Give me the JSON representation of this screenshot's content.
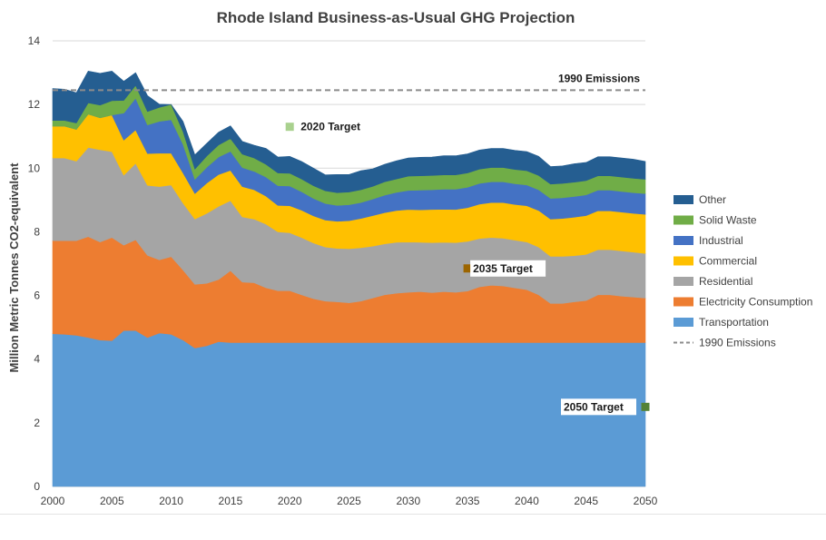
{
  "chart_data": {
    "type": "area",
    "stacked": true,
    "title": "Rhode Island Business-as-Usual GHG Projection",
    "xlabel": "",
    "ylabel": "Million Metric Tonnes CO2-equivalent",
    "xlim": [
      2000,
      2050
    ],
    "ylim": [
      0,
      14
    ],
    "x_ticks": [
      2000,
      2005,
      2010,
      2015,
      2020,
      2025,
      2030,
      2035,
      2040,
      2045,
      2050
    ],
    "y_ticks": [
      0,
      2,
      4,
      6,
      8,
      10,
      12,
      14
    ],
    "grid": "horizontal",
    "legend_position": "right",
    "x": [
      2000,
      2001,
      2002,
      2003,
      2004,
      2005,
      2006,
      2007,
      2008,
      2009,
      2010,
      2011,
      2012,
      2013,
      2014,
      2015,
      2016,
      2017,
      2018,
      2019,
      2020,
      2021,
      2022,
      2023,
      2024,
      2025,
      2026,
      2027,
      2028,
      2029,
      2030,
      2031,
      2032,
      2033,
      2034,
      2035,
      2036,
      2037,
      2038,
      2039,
      2040,
      2041,
      2042,
      2043,
      2044,
      2045,
      2046,
      2047,
      2048,
      2049,
      2050
    ],
    "series": [
      {
        "name": "Transportation",
        "color": "#5B9BD5",
        "values": [
          4.8,
          4.78,
          4.75,
          4.68,
          4.6,
          4.58,
          4.9,
          4.9,
          4.68,
          4.82,
          4.78,
          4.6,
          4.35,
          4.42,
          4.55,
          4.52,
          4.52,
          4.52,
          4.52,
          4.52,
          4.52,
          4.52,
          4.52,
          4.52,
          4.52,
          4.52,
          4.52,
          4.52,
          4.52,
          4.52,
          4.52,
          4.52,
          4.52,
          4.52,
          4.52,
          4.52,
          4.52,
          4.52,
          4.52,
          4.52,
          4.52,
          4.52,
          4.52,
          4.52,
          4.52,
          4.52,
          4.52,
          4.52,
          4.52,
          4.52,
          4.52
        ]
      },
      {
        "name": "Electricity Consumption",
        "color": "#ED7D31",
        "values": [
          2.92,
          2.94,
          2.97,
          3.17,
          3.08,
          3.24,
          2.68,
          2.85,
          2.58,
          2.3,
          2.44,
          2.2,
          2.0,
          1.96,
          1.95,
          2.26,
          1.9,
          1.88,
          1.72,
          1.63,
          1.63,
          1.5,
          1.38,
          1.3,
          1.28,
          1.25,
          1.3,
          1.4,
          1.5,
          1.55,
          1.58,
          1.6,
          1.57,
          1.6,
          1.58,
          1.62,
          1.75,
          1.8,
          1.78,
          1.72,
          1.66,
          1.5,
          1.23,
          1.23,
          1.28,
          1.32,
          1.5,
          1.5,
          1.46,
          1.43,
          1.4
        ]
      },
      {
        "name": "Residential",
        "color": "#A5A5A5",
        "values": [
          2.6,
          2.6,
          2.5,
          2.8,
          2.9,
          2.7,
          2.2,
          2.4,
          2.2,
          2.3,
          2.25,
          2.1,
          2.05,
          2.2,
          2.3,
          2.2,
          2.05,
          2.0,
          2.0,
          1.85,
          1.82,
          1.8,
          1.75,
          1.7,
          1.68,
          1.7,
          1.68,
          1.63,
          1.6,
          1.6,
          1.58,
          1.55,
          1.57,
          1.55,
          1.56,
          1.56,
          1.52,
          1.5,
          1.5,
          1.5,
          1.5,
          1.5,
          1.48,
          1.48,
          1.45,
          1.45,
          1.42,
          1.42,
          1.42,
          1.41,
          1.4
        ]
      },
      {
        "name": "Commercial",
        "color": "#FFC000",
        "values": [
          1.0,
          1.0,
          1.0,
          1.05,
          1.0,
          1.15,
          1.1,
          1.05,
          1.0,
          1.05,
          1.0,
          0.95,
          0.8,
          0.95,
          1.0,
          0.95,
          0.95,
          0.92,
          0.88,
          0.83,
          0.85,
          0.86,
          0.85,
          0.85,
          0.85,
          0.88,
          0.92,
          0.96,
          0.98,
          1.0,
          1.02,
          1.02,
          1.04,
          1.04,
          1.04,
          1.06,
          1.08,
          1.1,
          1.12,
          1.12,
          1.14,
          1.15,
          1.17,
          1.19,
          1.21,
          1.22,
          1.22,
          1.22,
          1.22,
          1.22,
          1.23
        ]
      },
      {
        "name": "Industrial",
        "color": "#4472C4",
        "values": [
          0.0,
          0.0,
          0.0,
          0.0,
          0.0,
          0.0,
          0.85,
          1.0,
          0.9,
          1.0,
          1.05,
          0.9,
          0.45,
          0.5,
          0.55,
          0.6,
          0.6,
          0.58,
          0.6,
          0.62,
          0.62,
          0.58,
          0.55,
          0.52,
          0.5,
          0.5,
          0.5,
          0.52,
          0.55,
          0.57,
          0.6,
          0.62,
          0.62,
          0.63,
          0.64,
          0.64,
          0.65,
          0.65,
          0.65,
          0.65,
          0.65,
          0.65,
          0.65,
          0.65,
          0.65,
          0.65,
          0.65,
          0.65,
          0.65,
          0.65,
          0.65
        ]
      },
      {
        "name": "Solid Waste",
        "color": "#70AD47",
        "values": [
          0.18,
          0.18,
          0.2,
          0.35,
          0.4,
          0.45,
          0.4,
          0.4,
          0.42,
          0.44,
          0.48,
          0.4,
          0.32,
          0.35,
          0.38,
          0.4,
          0.42,
          0.42,
          0.4,
          0.4,
          0.4,
          0.4,
          0.4,
          0.4,
          0.4,
          0.4,
          0.4,
          0.4,
          0.42,
          0.42,
          0.45,
          0.45,
          0.45,
          0.45,
          0.45,
          0.45,
          0.45,
          0.45,
          0.45,
          0.45,
          0.45,
          0.45,
          0.45,
          0.45,
          0.45,
          0.45,
          0.45,
          0.45,
          0.45,
          0.45,
          0.45
        ]
      },
      {
        "name": "Other",
        "color": "#255E91",
        "values": [
          1.0,
          0.98,
          0.95,
          1.0,
          1.0,
          0.93,
          0.6,
          0.4,
          0.5,
          0.1,
          0.0,
          0.32,
          0.45,
          0.4,
          0.4,
          0.4,
          0.4,
          0.4,
          0.5,
          0.5,
          0.53,
          0.55,
          0.55,
          0.5,
          0.57,
          0.55,
          0.6,
          0.55,
          0.55,
          0.57,
          0.57,
          0.58,
          0.58,
          0.6,
          0.6,
          0.6,
          0.6,
          0.6,
          0.6,
          0.6,
          0.6,
          0.6,
          0.55,
          0.55,
          0.58,
          0.57,
          0.6,
          0.6,
          0.6,
          0.6,
          0.56
        ]
      }
    ],
    "reference_line": {
      "name": "1990 Emissions",
      "label": "1990 Emissions",
      "y": 12.45,
      "color": "#8c8c8c",
      "style": "dashed"
    },
    "targets": [
      {
        "label": "2020 Target",
        "x": 2020,
        "y": 11.3,
        "color": "#A9D18E"
      },
      {
        "label": "2035 Target",
        "x": 2035,
        "y": 6.85,
        "color": "#9C6500"
      },
      {
        "label": "2050 Target",
        "x": 2050,
        "y": 2.5,
        "color": "#548235"
      }
    ],
    "legend": [
      "Other",
      "Solid Waste",
      "Industrial",
      "Commercial",
      "Residential",
      "Electricity Consumption",
      "Transportation",
      "1990 Emissions"
    ]
  }
}
